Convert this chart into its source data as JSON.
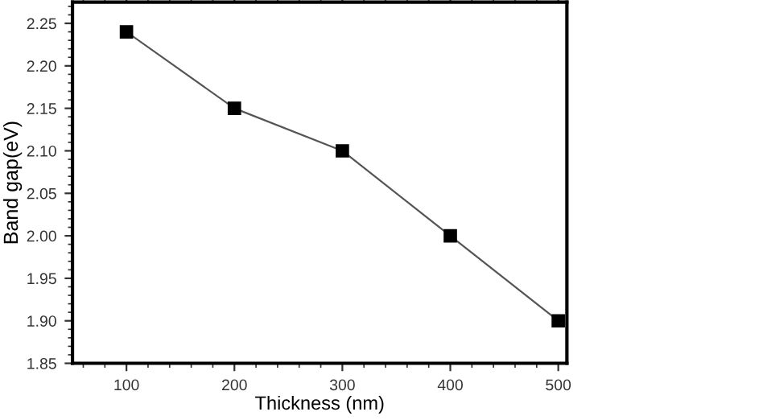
{
  "chart_data": {
    "type": "line",
    "xlabel": "Thickness (nm)",
    "ylabel": "Band gap(eV)",
    "x": [
      100,
      200,
      300,
      400,
      500
    ],
    "series": [
      {
        "color": "#555555",
        "values": [
          2.24,
          2.15,
          2.1,
          2.0,
          1.9
        ]
      }
    ],
    "marker": "square",
    "line_style": "solid",
    "grid": false,
    "legend": false,
    "xlim": [
      50,
      508
    ],
    "ylim": [
      1.85,
      2.275
    ],
    "xticks": [
      100,
      200,
      300,
      400,
      500
    ],
    "yticks": [
      {
        "value": 1.85,
        "label": "1.85"
      },
      {
        "value": 1.9,
        "label": "1.90"
      },
      {
        "value": 1.95,
        "label": "1.95"
      },
      {
        "value": 2.0,
        "label": "2.00"
      },
      {
        "value": 2.05,
        "label": "2.05"
      },
      {
        "value": 2.1,
        "label": "2.10"
      },
      {
        "value": 2.15,
        "label": "2.15"
      },
      {
        "value": 2.2,
        "label": "2.20"
      },
      {
        "value": 2.25,
        "label": "2.25"
      }
    ]
  }
}
